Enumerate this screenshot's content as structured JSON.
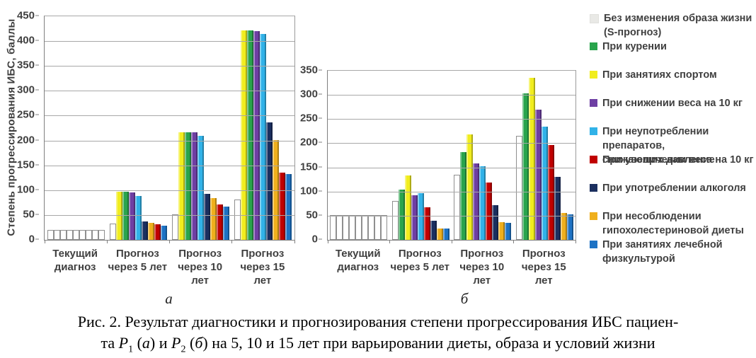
{
  "palette": {
    "white": "#FFFFFF",
    "green": "#29A44C",
    "yellow": "#F1ED1E",
    "purple": "#6E3FA3",
    "cyan": "#31B2E8",
    "red": "#C00000",
    "navy": "#1B2F5F",
    "orange": "#EFAF1D",
    "blue": "#1D72C4"
  },
  "legend": {
    "items": [
      {
        "color": "#E9E9E6",
        "light": true,
        "lines": [
          "Без изменения образа жизни",
          "(S-прогноз)"
        ]
      },
      {
        "color": "#29A44C",
        "light": false,
        "lines": [
          "При курении"
        ]
      },
      {
        "color": "#F1ED1E",
        "light": false,
        "lines": [
          "При занятиях спортом"
        ]
      },
      {
        "color": "#6E3FA3",
        "light": false,
        "lines": [
          "При снижении веса на 10 кг"
        ]
      },
      {
        "color": "#31B2E8",
        "light": false,
        "lines": [
          "При неупотреблении препаратов,",
          "снижающих давление"
        ]
      },
      {
        "color": "#C00000",
        "light": false,
        "lines": [
          "При увеличении веса на 10 кг"
        ]
      },
      {
        "color": "#1B2F5F",
        "light": false,
        "lines": [
          "При употреблении алкоголя"
        ]
      },
      {
        "color": "#EFAF1D",
        "light": false,
        "lines": [
          "При несоблюдении",
          "гипохолестериновой диеты"
        ]
      },
      {
        "color": "#1D72C4",
        "light": false,
        "lines": [
          "При занятиях лечебной",
          "физкультурой"
        ]
      }
    ]
  },
  "chart_data": [
    {
      "type": "bar",
      "panel_label": "а",
      "ylabel": "Степень прогрессирования ИБС, баллы",
      "ylim": [
        0,
        450
      ],
      "ytick_step": 50,
      "yticks": [
        0,
        50,
        100,
        150,
        200,
        250,
        300,
        350,
        400,
        450
      ],
      "grid": true,
      "series_names": {
        "white": "Без изменения образа жизни (S-прогноз)",
        "green": "При курении",
        "yellow": "При занятиях спортом",
        "purple": "При снижении веса на 10 кг",
        "cyan": "При неупотреблении препаратов, снижающих давление",
        "red": "При увеличении веса на 10 кг",
        "navy": "При употреблении алкоголя",
        "orange": "При несоблюдении гипохолестериновой диеты",
        "blue": "При занятиях лечебной физкультурой"
      },
      "groups": [
        {
          "category_lines": [
            "Текущий",
            "диагноз"
          ],
          "bars": [
            [
              "white",
              20
            ],
            [
              "white",
              20
            ],
            [
              "white",
              20
            ],
            [
              "white",
              20
            ],
            [
              "white",
              20
            ],
            [
              "white",
              20
            ],
            [
              "white",
              20
            ],
            [
              "white",
              20
            ],
            [
              "white",
              20
            ]
          ]
        },
        {
          "category_lines": [
            "Прогноз",
            "через 5 лет"
          ],
          "bars": [
            [
              "white",
              33
            ],
            [
              "yellow",
              97
            ],
            [
              "green",
              97
            ],
            [
              "purple",
              96
            ],
            [
              "cyan",
              88
            ],
            [
              "navy",
              37
            ],
            [
              "orange",
              34
            ],
            [
              "red",
              32
            ],
            [
              "blue",
              28
            ]
          ]
        },
        {
          "category_lines": [
            "Прогноз",
            "через 10",
            "лет"
          ],
          "bars": [
            [
              "white",
              52
            ],
            [
              "yellow",
              217
            ],
            [
              "green",
              217
            ],
            [
              "purple",
              216
            ],
            [
              "cyan",
              210
            ],
            [
              "navy",
              93
            ],
            [
              "orange",
              84
            ],
            [
              "red",
              71
            ],
            [
              "blue",
              67
            ]
          ]
        },
        {
          "category_lines": [
            "Прогноз",
            "через 15",
            "лет"
          ],
          "bars": [
            [
              "white",
              81
            ],
            [
              "yellow",
              421
            ],
            [
              "green",
              421
            ],
            [
              "purple",
              420
            ],
            [
              "cyan",
              415
            ],
            [
              "navy",
              237
            ],
            [
              "orange",
              201
            ],
            [
              "red",
              136
            ],
            [
              "blue",
              132
            ]
          ]
        }
      ]
    },
    {
      "type": "bar",
      "panel_label": "б",
      "ylabel": "",
      "ylim": [
        0,
        350
      ],
      "ytick_step": 50,
      "yticks": [
        0,
        50,
        100,
        150,
        200,
        250,
        300,
        350
      ],
      "grid": true,
      "series_names": {
        "white": "Без изменения образа жизни (S-прогноз)",
        "green": "При курении",
        "yellow": "При занятиях спортом",
        "purple": "При снижении веса на 10 кг",
        "cyan": "При неупотреблении препаратов, снижающих давление",
        "red": "При увеличении веса на 10 кг",
        "navy": "При употреблении алкоголя",
        "orange": "При несоблюдении гипохолестериновой диеты",
        "blue": "При занятиях лечебной физкультурой"
      },
      "groups": [
        {
          "category_lines": [
            "Текущий",
            "диагноз"
          ],
          "bars": [
            [
              "white",
              52
            ],
            [
              "white",
              52
            ],
            [
              "white",
              52
            ],
            [
              "white",
              52
            ],
            [
              "white",
              52
            ],
            [
              "white",
              52
            ],
            [
              "white",
              52
            ],
            [
              "white",
              52
            ],
            [
              "white",
              52
            ]
          ]
        },
        {
          "category_lines": [
            "Прогноз",
            "через 5 лет"
          ],
          "bars": [
            [
              "white",
              80
            ],
            [
              "green",
              104
            ],
            [
              "yellow",
              134
            ],
            [
              "purple",
              93
            ],
            [
              "cyan",
              97
            ],
            [
              "red",
              67
            ],
            [
              "navy",
              39
            ],
            [
              "orange",
              23
            ],
            [
              "blue",
              23
            ]
          ]
        },
        {
          "category_lines": [
            "Прогноз",
            "через 10",
            "лет"
          ],
          "bars": [
            [
              "white",
              135
            ],
            [
              "green",
              181
            ],
            [
              "yellow",
              218
            ],
            [
              "purple",
              158
            ],
            [
              "cyan",
              153
            ],
            [
              "red",
              118
            ],
            [
              "navy",
              72
            ],
            [
              "orange",
              37
            ],
            [
              "blue",
              35
            ]
          ]
        },
        {
          "category_lines": [
            "Прогноз",
            "через 15",
            "лет"
          ],
          "bars": [
            [
              "white",
              215
            ],
            [
              "green",
              303
            ],
            [
              "yellow",
              335
            ],
            [
              "purple",
              270
            ],
            [
              "cyan",
              234
            ],
            [
              "red",
              196
            ],
            [
              "navy",
              130
            ],
            [
              "orange",
              56
            ],
            [
              "blue",
              53
            ]
          ]
        }
      ]
    }
  ],
  "caption": {
    "line1": "Рис. 2. Результат диагностики и прогнозирования степени прогрессирования ИБС пациен-",
    "line2": {
      "pre": "та ",
      "p1": "P",
      "p1_sub": "1",
      "mid1": " (",
      "a_label": "а",
      "mid2": ") и ",
      "p2": "P",
      "p2_sub": "2",
      "mid3": " (",
      "b_label": "б",
      "tail": ") на 5, 10 и 15 лет при варьировании диеты, образа и условий жизни"
    }
  }
}
